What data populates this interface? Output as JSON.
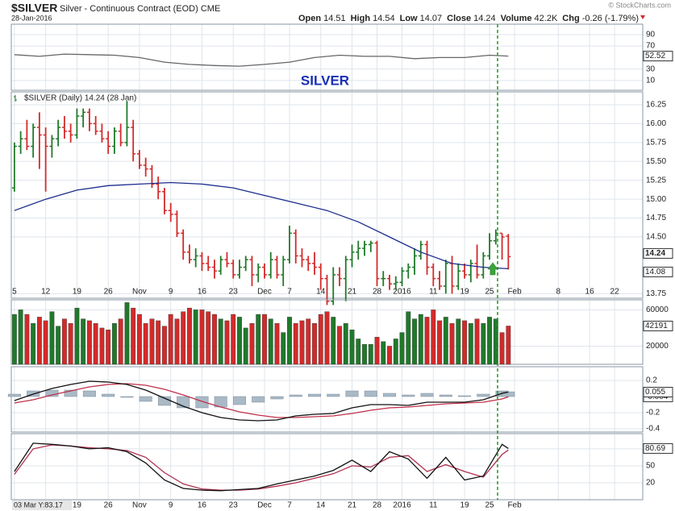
{
  "header": {
    "title": "$SILVER",
    "subtitle": "Silver - Continuous Contract (EOD) CME",
    "date": "28-Jan-2016",
    "credit": "© StockCharts.com",
    "quote": [
      {
        "label": "Open",
        "value": "14.51"
      },
      {
        "label": "High",
        "value": "14.54"
      },
      {
        "label": "Low",
        "value": "14.07"
      },
      {
        "label": "Close",
        "value": "14.24"
      },
      {
        "label": "Volume",
        "value": "42.2K"
      },
      {
        "label": "Chg",
        "value": "-0.26 (-1.79%)"
      }
    ]
  },
  "chart_data": [
    {
      "type": "line",
      "annotation": "SILVER",
      "ylim": [
        -7,
        108
      ],
      "yticks": [
        10,
        30,
        70,
        90
      ],
      "x": [
        0,
        4,
        8,
        12,
        16,
        20,
        24,
        28,
        32,
        36,
        40,
        44,
        48,
        52,
        56,
        60,
        64,
        68,
        72,
        76,
        79
      ],
      "series": [
        {
          "color": "#666666",
          "last_label": "52.52",
          "values": [
            55,
            52,
            56,
            55,
            54,
            50,
            42,
            38,
            36,
            35,
            38,
            42,
            50,
            54,
            52,
            52,
            48,
            50,
            50,
            54,
            52.52
          ]
        }
      ]
    },
    {
      "type": "ohlc",
      "title": "$SILVER (Daily) 14.24 (28 Jan)",
      "last_label": "14.24",
      "up_color": "#1f7a2a",
      "down_color": "#d42a2a",
      "xlim": [
        -0.5,
        100.5
      ],
      "ylim": [
        13.69,
        16.42
      ],
      "yticks": [
        {
          "value": 13.75,
          "label": "13.75"
        },
        {
          "value": 14.5,
          "label": "14.50"
        },
        {
          "value": 14.75,
          "label": "14.75"
        },
        {
          "value": 15,
          "label": "15.00"
        },
        {
          "value": 15.25,
          "label": "15.25"
        },
        {
          "value": 15.5,
          "label": "15.50"
        },
        {
          "value": 15.75,
          "label": "15.75"
        },
        {
          "value": 16,
          "label": "16.00"
        },
        {
          "value": 16.25,
          "label": "16.25"
        }
      ],
      "xticks": [
        {
          "value": 0,
          "label": "5"
        },
        {
          "value": 5,
          "label": "12"
        },
        {
          "value": 10,
          "label": "19"
        },
        {
          "value": 15,
          "label": "26"
        },
        {
          "value": 20,
          "label": "Nov"
        },
        {
          "value": 25,
          "label": "9"
        },
        {
          "value": 30,
          "label": "16"
        },
        {
          "value": 35,
          "label": "23"
        },
        {
          "value": 40,
          "label": "Dec"
        },
        {
          "value": 44,
          "label": "7"
        },
        {
          "value": 49,
          "label": "14"
        },
        {
          "value": 54,
          "label": "21"
        },
        {
          "value": 58,
          "label": "28"
        },
        {
          "value": 62,
          "label": "2016"
        },
        {
          "value": 67,
          "label": "11"
        },
        {
          "value": 72,
          "label": "19"
        },
        {
          "value": 76,
          "label": "25"
        },
        {
          "value": 80,
          "label": "Feb"
        },
        {
          "value": 87,
          "label": "8"
        },
        {
          "value": 92,
          "label": "16"
        },
        {
          "value": 96,
          "label": "22"
        }
      ],
      "open": [
        15.15,
        15.7,
        15.8,
        15.7,
        15.95,
        15.85,
        15.7,
        15.8,
        15.95,
        15.9,
        15.85,
        16.1,
        16.15,
        16.0,
        15.9,
        15.8,
        15.7,
        15.9,
        15.75,
        15.95,
        15.6,
        15.45,
        15.4,
        15.2,
        15.1,
        14.85,
        14.8,
        14.55,
        14.3,
        14.2,
        14.25,
        14.15,
        14.1,
        14.05,
        14.2,
        14.15,
        14.0,
        14.1,
        14.2,
        14.0,
        14.1,
        14.0,
        14.2,
        14.0,
        14.2,
        14.55,
        14.25,
        14.2,
        14.15,
        14.1,
        13.95,
        13.65,
        14.0,
        13.95,
        14.2,
        14.3,
        14.35,
        14.4,
        14.42,
        13.95,
        13.95,
        13.88,
        13.9,
        14.05,
        14.1,
        14.25,
        14.4,
        14.1,
        13.95,
        13.85,
        14.15,
        13.85,
        14.05,
        14.0,
        14.15,
        14.0,
        14.25,
        14.45,
        14.55,
        14.51
      ],
      "high": [
        15.75,
        15.9,
        16.05,
        16.0,
        16.15,
        15.95,
        15.85,
        16.05,
        16.1,
        16.0,
        16.2,
        16.2,
        16.2,
        16.1,
        16.0,
        15.9,
        15.95,
        16.0,
        16.3,
        16.05,
        15.65,
        15.55,
        15.45,
        15.3,
        15.15,
        14.95,
        14.85,
        14.6,
        14.4,
        14.35,
        14.3,
        14.25,
        14.2,
        14.25,
        14.3,
        14.2,
        14.2,
        14.25,
        14.25,
        14.15,
        14.15,
        14.3,
        14.25,
        14.25,
        14.65,
        14.6,
        14.35,
        14.25,
        14.3,
        14.15,
        14.0,
        14.1,
        14.1,
        14.25,
        14.4,
        14.45,
        14.45,
        14.45,
        14.45,
        14.05,
        14.0,
        13.98,
        14.1,
        14.15,
        14.35,
        14.45,
        14.45,
        14.15,
        14.05,
        14.2,
        14.25,
        14.15,
        14.15,
        14.2,
        14.4,
        14.3,
        14.55,
        14.6,
        14.55,
        14.54
      ],
      "low": [
        15.1,
        15.6,
        15.65,
        15.55,
        15.4,
        15.1,
        15.55,
        15.7,
        15.8,
        15.75,
        15.8,
        15.95,
        15.9,
        15.85,
        15.75,
        15.6,
        15.6,
        15.7,
        15.7,
        15.5,
        15.4,
        15.3,
        15.15,
        15.0,
        14.8,
        14.7,
        14.5,
        14.2,
        14.15,
        14.1,
        14.05,
        14.05,
        13.95,
        14.0,
        14.1,
        13.95,
        13.95,
        14.05,
        13.85,
        13.9,
        13.95,
        13.95,
        13.95,
        13.85,
        14.15,
        14.15,
        14.1,
        14.05,
        14.0,
        13.8,
        13.6,
        13.6,
        13.85,
        13.65,
        14.1,
        14.2,
        14.25,
        14.3,
        13.85,
        13.85,
        13.8,
        13.8,
        13.85,
        13.95,
        14.0,
        14.2,
        14.0,
        13.85,
        13.8,
        13.75,
        13.75,
        13.8,
        13.95,
        13.9,
        13.95,
        13.95,
        14.2,
        14.4,
        14.2,
        14.07
      ],
      "close": [
        15.7,
        15.8,
        15.7,
        15.95,
        15.85,
        15.7,
        15.8,
        15.95,
        15.9,
        15.85,
        16.1,
        16.15,
        16.0,
        15.9,
        15.8,
        15.7,
        15.9,
        15.75,
        15.95,
        15.6,
        15.45,
        15.4,
        15.2,
        15.1,
        14.85,
        14.8,
        14.55,
        14.3,
        14.2,
        14.25,
        14.15,
        14.1,
        14.05,
        14.2,
        14.15,
        14.0,
        14.1,
        14.2,
        14.0,
        14.1,
        14.0,
        14.2,
        14.0,
        14.2,
        14.55,
        14.25,
        14.2,
        14.15,
        14.1,
        13.95,
        13.65,
        14.0,
        13.95,
        14.2,
        14.3,
        14.35,
        14.4,
        14.42,
        13.95,
        13.95,
        13.88,
        13.9,
        14.05,
        14.1,
        14.25,
        14.4,
        14.1,
        13.95,
        13.85,
        14.15,
        13.85,
        14.05,
        14.0,
        14.15,
        14.0,
        14.25,
        14.45,
        14.55,
        14.5,
        14.24
      ],
      "overlay": {
        "color": "#1c2c8c",
        "last_label": "14.08",
        "x": [
          0,
          5,
          10,
          15,
          20,
          25,
          30,
          35,
          40,
          45,
          50,
          55,
          60,
          65,
          70,
          75,
          79
        ],
        "values": [
          14.85,
          15.0,
          15.12,
          15.18,
          15.2,
          15.22,
          15.2,
          15.15,
          15.05,
          14.95,
          14.85,
          14.7,
          14.5,
          14.3,
          14.15,
          14.1,
          14.08
        ]
      }
    },
    {
      "type": "bar",
      "last_label": "42191",
      "ylim": [
        0,
        71000
      ],
      "yticks": [
        20000,
        60000
      ],
      "values": [
        55000,
        60000,
        55000,
        45000,
        52000,
        48000,
        58000,
        42000,
        50000,
        45000,
        62000,
        50000,
        48000,
        45000,
        40000,
        38000,
        45000,
        50000,
        68000,
        62000,
        55000,
        45000,
        50000,
        48000,
        42000,
        55000,
        50000,
        58000,
        62000,
        60000,
        60000,
        58000,
        55000,
        50000,
        48000,
        55000,
        52000,
        40000,
        45000,
        55000,
        55000,
        50000,
        45000,
        35000,
        52000,
        45000,
        48000,
        50000,
        45000,
        55000,
        58000,
        52000,
        42000,
        45000,
        38000,
        28000,
        22000,
        22000,
        30000,
        25000,
        20000,
        28000,
        35000,
        58000,
        50000,
        55000,
        52000,
        60000,
        48000,
        52000,
        45000,
        50000,
        48000,
        45000,
        50000,
        45000,
        52000,
        50000,
        35000,
        42191
      ]
    },
    {
      "type": "line",
      "ylim": [
        -0.44,
        0.37
      ],
      "yticks": [
        -0.4,
        -0.2,
        0.2
      ],
      "x": [
        0,
        3,
        6,
        9,
        12,
        15,
        18,
        21,
        24,
        27,
        30,
        33,
        36,
        39,
        42,
        45,
        48,
        51,
        54,
        57,
        60,
        63,
        66,
        69,
        72,
        75,
        78,
        79
      ],
      "series": [
        {
          "kind": "histogram",
          "color": "#a9b9c6",
          "values": [
            0.03,
            0.07,
            0.08,
            0.08,
            0.07,
            0.03,
            -0.01,
            -0.06,
            -0.11,
            -0.14,
            -0.14,
            -0.13,
            -0.1,
            -0.07,
            -0.03,
            0.02,
            0.03,
            0.03,
            0.07,
            0.07,
            0.04,
            0.02,
            0.04,
            0.02,
            0.01,
            0.03,
            0.07,
            0.059
          ]
        },
        {
          "color": "#c0304a",
          "last_label": "-0.004",
          "values": [
            -0.08,
            -0.04,
            0.02,
            0.07,
            0.12,
            0.15,
            0.16,
            0.14,
            0.09,
            0.02,
            -0.06,
            -0.13,
            -0.19,
            -0.23,
            -0.26,
            -0.26,
            -0.25,
            -0.24,
            -0.21,
            -0.17,
            -0.14,
            -0.13,
            -0.11,
            -0.09,
            -0.08,
            -0.07,
            -0.03,
            -0.004
          ]
        },
        {
          "color": "#111111",
          "last_label": "0.055",
          "values": [
            -0.05,
            0.03,
            0.1,
            0.15,
            0.19,
            0.18,
            0.15,
            0.08,
            -0.02,
            -0.12,
            -0.2,
            -0.26,
            -0.29,
            -0.3,
            -0.29,
            -0.24,
            -0.22,
            -0.21,
            -0.14,
            -0.1,
            -0.1,
            -0.11,
            -0.07,
            -0.07,
            -0.07,
            -0.04,
            0.04,
            0.055
          ]
        }
      ]
    },
    {
      "type": "line",
      "cursor_label": "03 Mar Y:83.17",
      "ylim": [
        -10,
        107
      ],
      "yticks": [
        20,
        50,
        80
      ],
      "xticks": [
        {
          "value": 10,
          "label": "19"
        },
        {
          "value": 15,
          "label": "26"
        },
        {
          "value": 20,
          "label": "Nov"
        },
        {
          "value": 25,
          "label": "9"
        },
        {
          "value": 30,
          "label": "16"
        },
        {
          "value": 35,
          "label": "23"
        },
        {
          "value": 40,
          "label": "Dec"
        },
        {
          "value": 44,
          "label": "7"
        },
        {
          "value": 49,
          "label": "14"
        },
        {
          "value": 54,
          "label": "21"
        },
        {
          "value": 58,
          "label": "28"
        },
        {
          "value": 62,
          "label": "2016"
        },
        {
          "value": 67,
          "label": "11"
        },
        {
          "value": 72,
          "label": "19"
        },
        {
          "value": 76,
          "label": "25"
        },
        {
          "value": 80,
          "label": "Feb"
        }
      ],
      "x": [
        0,
        3,
        6,
        9,
        12,
        15,
        18,
        21,
        24,
        27,
        30,
        33,
        36,
        39,
        42,
        45,
        48,
        51,
        54,
        57,
        60,
        63,
        66,
        69,
        72,
        75,
        78,
        79
      ],
      "series": [
        {
          "color": "#b03050",
          "values": [
            35,
            80,
            87,
            85,
            82,
            80,
            77,
            65,
            38,
            18,
            9,
            7,
            7,
            9,
            14,
            20,
            28,
            36,
            50,
            48,
            65,
            68,
            40,
            52,
            40,
            30,
            70,
            78
          ]
        },
        {
          "color": "#111111",
          "last_label": "80.69",
          "values": [
            40,
            90,
            88,
            85,
            80,
            82,
            75,
            55,
            25,
            10,
            7,
            6,
            8,
            10,
            18,
            25,
            32,
            42,
            60,
            40,
            75,
            62,
            28,
            65,
            25,
            32,
            88,
            80.69
          ]
        }
      ]
    }
  ]
}
